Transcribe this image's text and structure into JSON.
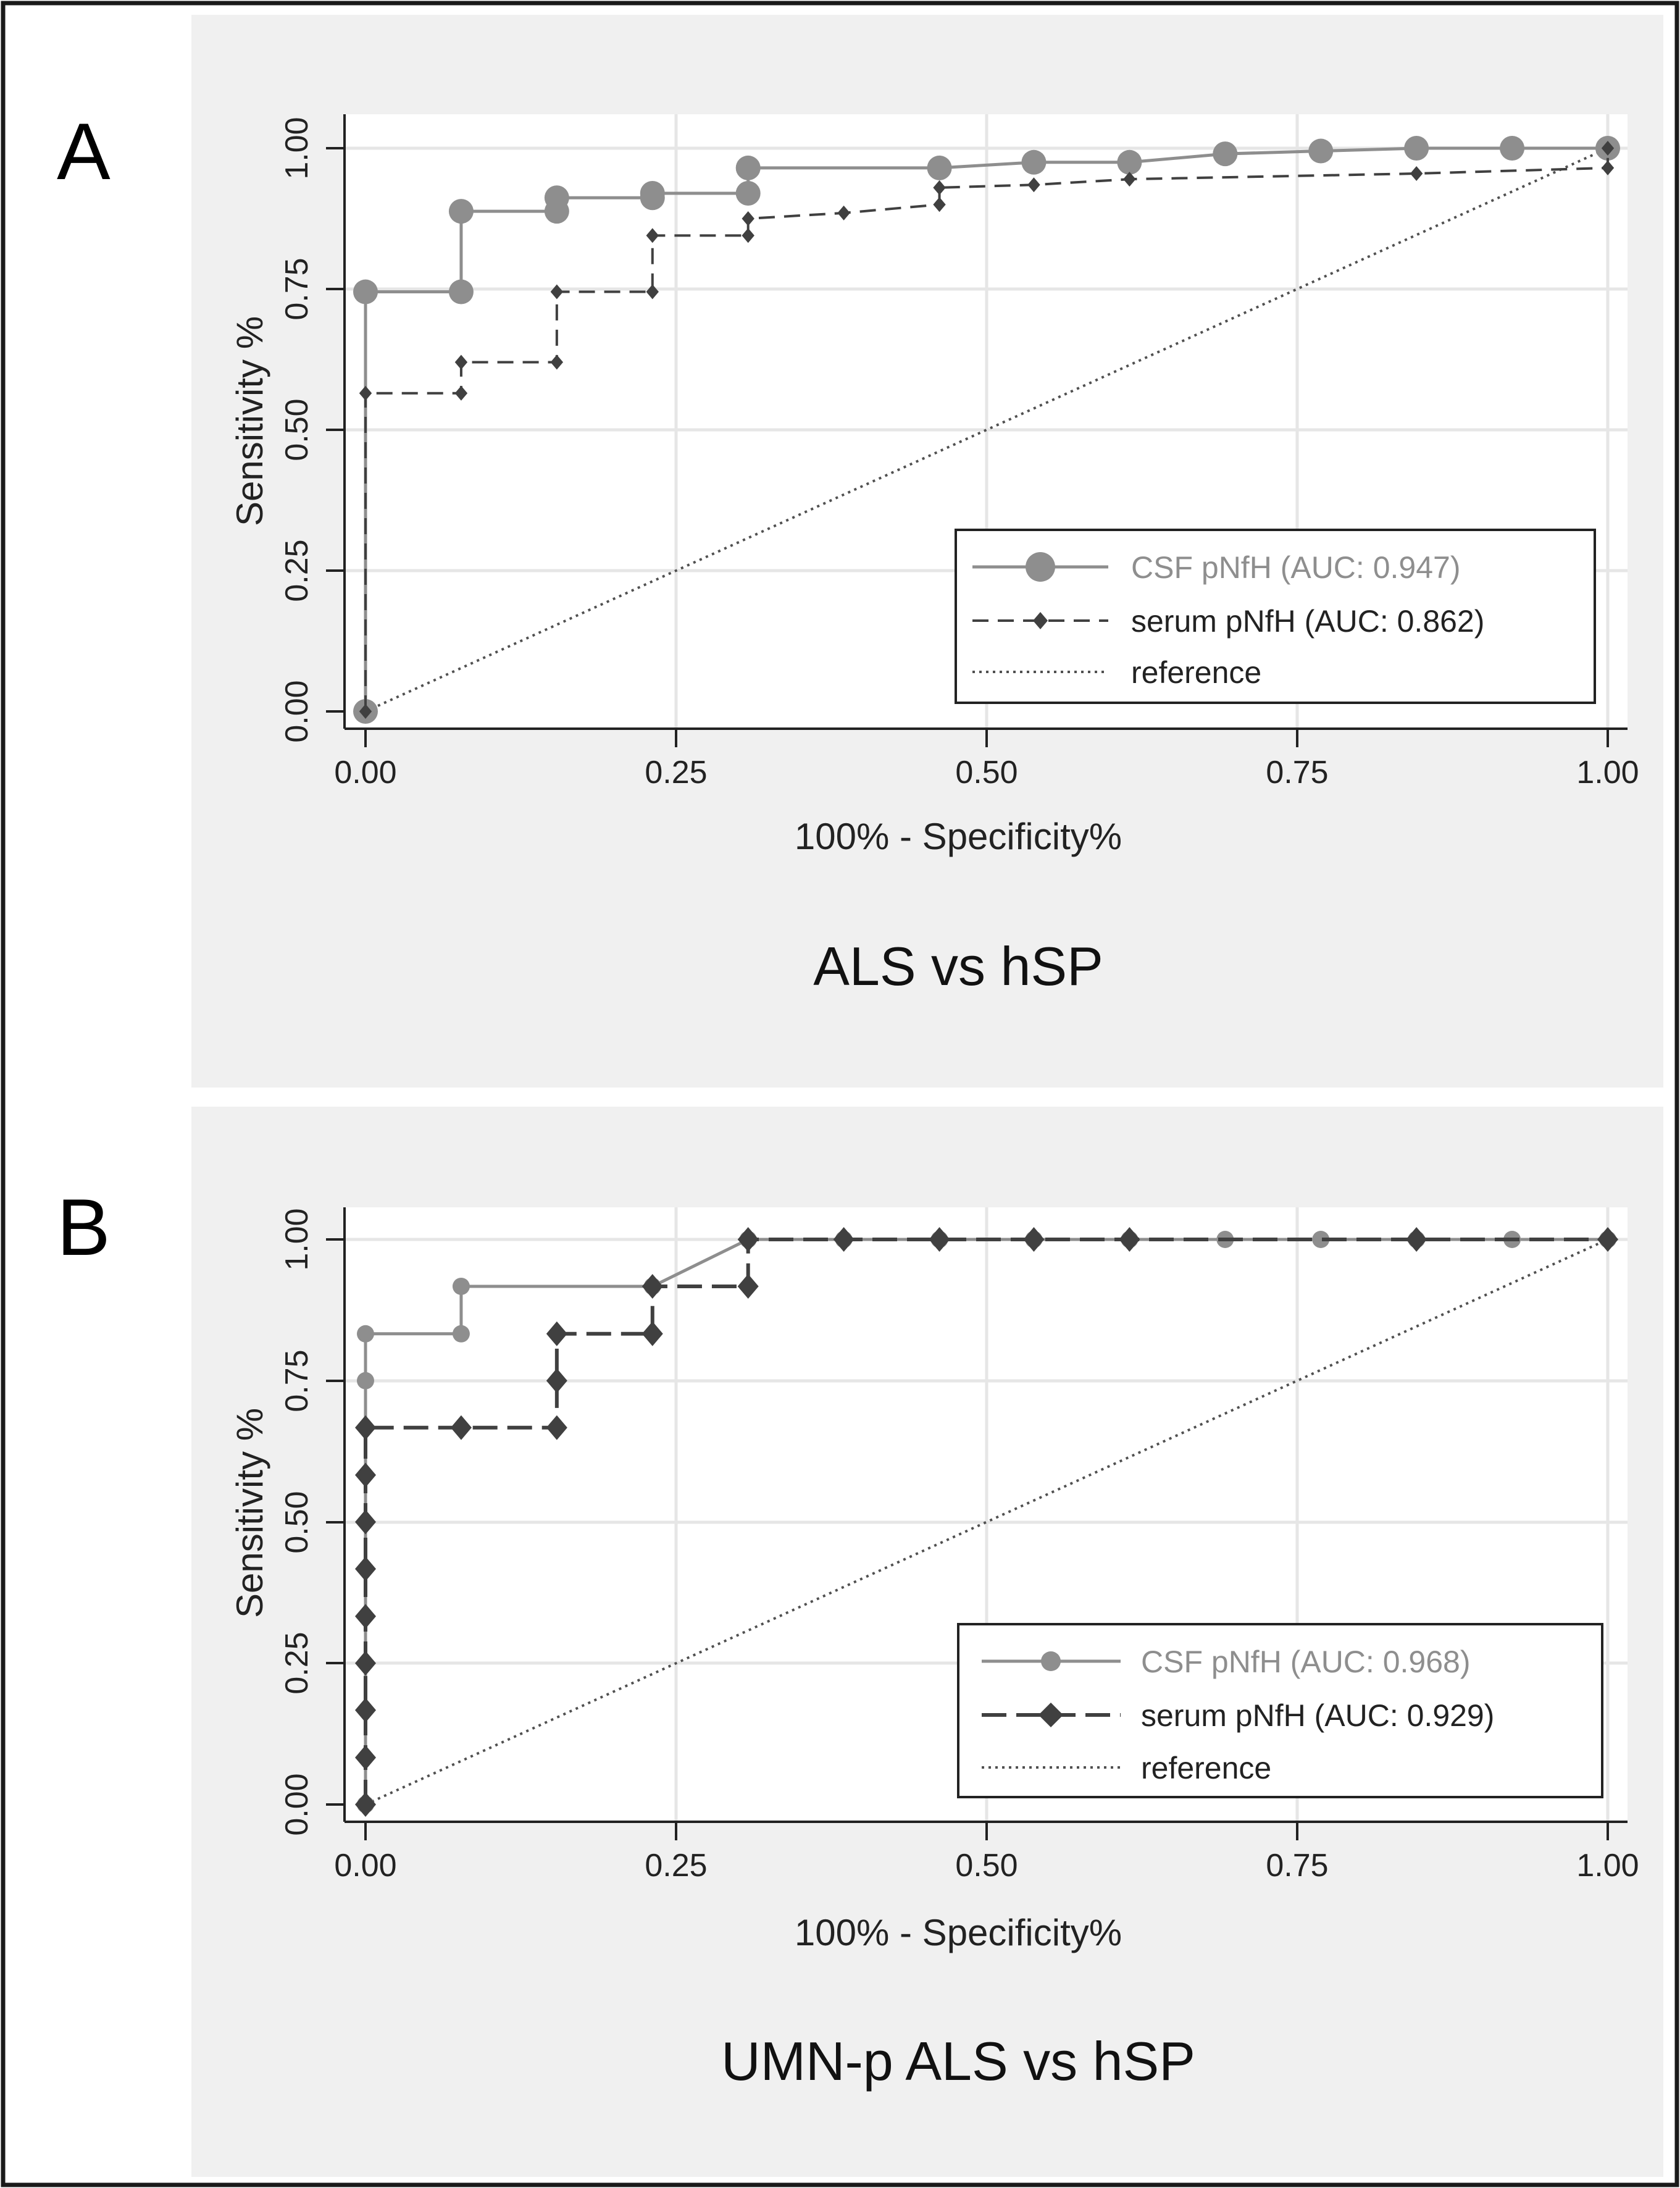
{
  "panels": [
    {
      "label": "A",
      "subtitle": "ALS vs hSP",
      "chart_data": {
        "type": "line",
        "title": "ALS vs hSP",
        "xlabel": "100% - Specificity%",
        "ylabel": "Sensitivity %",
        "xlim": [
          0,
          1
        ],
        "ylim": [
          0,
          1
        ],
        "xticks": [
          "0.00",
          "0.25",
          "0.50",
          "0.75",
          "1.00"
        ],
        "yticks": [
          "0.00",
          "0.25",
          "0.50",
          "0.75",
          "1.00"
        ],
        "grid": true,
        "legend_position": "bottom-right",
        "series": [
          {
            "name": "CSF pNfH (AUC: 0.947)",
            "color": "#8e8e8e",
            "marker": "circle",
            "line": "solid",
            "x": [
              0,
              0,
              0.077,
              0.077,
              0.154,
              0.154,
              0.231,
              0.231,
              0.308,
              0.308,
              0.462,
              0.538,
              0.615,
              0.692,
              0.769,
              0.846,
              0.923,
              1.0
            ],
            "y": [
              0,
              0.745,
              0.745,
              0.888,
              0.888,
              0.912,
              0.912,
              0.92,
              0.92,
              0.965,
              0.965,
              0.975,
              0.975,
              0.99,
              0.995,
              1.0,
              1.0,
              1.0
            ]
          },
          {
            "name": "serum pNfH (AUC: 0.862)",
            "color": "#404040",
            "marker": "diamond",
            "line": "dashed",
            "x": [
              0,
              0,
              0.077,
              0.077,
              0.154,
              0.154,
              0.231,
              0.231,
              0.308,
              0.308,
              0.385,
              0.462,
              0.462,
              0.538,
              0.615,
              0.846,
              1.0,
              1.0
            ],
            "y": [
              0,
              0.565,
              0.565,
              0.62,
              0.62,
              0.745,
              0.745,
              0.845,
              0.845,
              0.875,
              0.885,
              0.9,
              0.93,
              0.935,
              0.945,
              0.955,
              0.965,
              1.0
            ]
          },
          {
            "name": "reference",
            "color": "#505050",
            "line": "dotted",
            "x": [
              0,
              1
            ],
            "y": [
              0,
              1
            ]
          }
        ]
      }
    },
    {
      "label": "B",
      "subtitle": "UMN-p ALS vs hSP",
      "chart_data": {
        "type": "line",
        "title": "UMN-p ALS vs hSP",
        "xlabel": "100% - Specificity%",
        "ylabel": "Sensitivity %",
        "xlim": [
          0,
          1
        ],
        "ylim": [
          0,
          1
        ],
        "xticks": [
          "0.00",
          "0.25",
          "0.50",
          "0.75",
          "1.00"
        ],
        "yticks": [
          "0.00",
          "0.25",
          "0.50",
          "0.75",
          "1.00"
        ],
        "grid": true,
        "legend_position": "bottom-right",
        "series": [
          {
            "name": "CSF pNfH (AUC: 0.968)",
            "color": "#8e8e8e",
            "marker": "circle",
            "line": "solid",
            "x": [
              0,
              0,
              0,
              0.077,
              0.077,
              0.231,
              0.308,
              0.385,
              0.462,
              0.538,
              0.615,
              0.692,
              0.769,
              0.846,
              0.923,
              1.0
            ],
            "y": [
              0,
              0.75,
              0.833,
              0.833,
              0.917,
              0.917,
              1.0,
              1.0,
              1.0,
              1.0,
              1.0,
              1.0,
              1.0,
              1.0,
              1.0,
              1.0
            ]
          },
          {
            "name": "serum pNfH (AUC: 0.929)",
            "color": "#404040",
            "marker": "diamond",
            "line": "dashed",
            "x": [
              0,
              0,
              0,
              0,
              0,
              0,
              0,
              0,
              0,
              0.077,
              0.154,
              0.154,
              0.154,
              0.231,
              0.231,
              0.308,
              0.308,
              0.385,
              0.462,
              0.538,
              0.615,
              0.846,
              1.0
            ],
            "y": [
              0,
              0.083,
              0.167,
              0.25,
              0.333,
              0.417,
              0.5,
              0.583,
              0.667,
              0.667,
              0.667,
              0.75,
              0.833,
              0.833,
              0.917,
              0.917,
              1.0,
              1.0,
              1.0,
              1.0,
              1.0,
              1.0,
              1.0
            ]
          },
          {
            "name": "reference",
            "color": "#505050",
            "line": "dotted",
            "x": [
              0,
              1
            ],
            "y": [
              0,
              1
            ]
          }
        ]
      }
    }
  ]
}
